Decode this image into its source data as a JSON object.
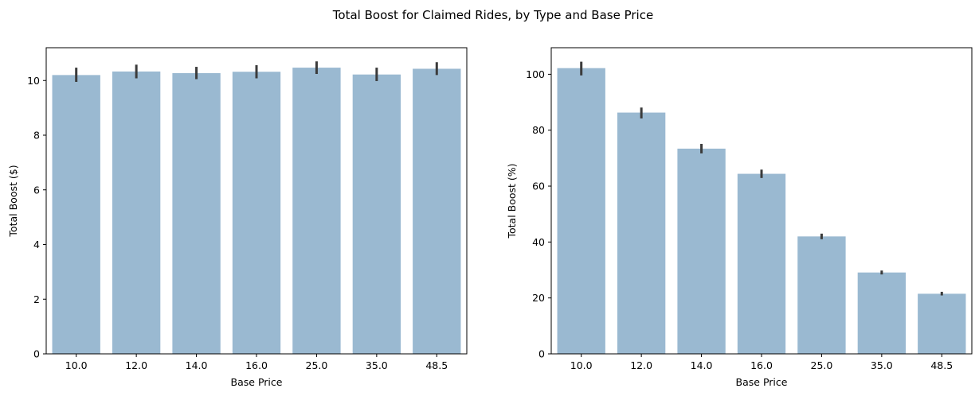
{
  "figure": {
    "title": "Total Boost for Claimed Rides, by Type and Base Price"
  },
  "colors": {
    "bar": "#9ab9d1",
    "error_bar": "#3b3b3b",
    "axis": "#000000"
  },
  "chart_data": [
    {
      "type": "bar",
      "title": "",
      "categories": [
        "10.0",
        "12.0",
        "14.0",
        "16.0",
        "25.0",
        "35.0",
        "48.5"
      ],
      "values": [
        10.2,
        10.33,
        10.27,
        10.32,
        10.47,
        10.22,
        10.43
      ],
      "error_low": [
        9.95,
        10.08,
        10.05,
        10.08,
        10.24,
        9.98,
        10.2
      ],
      "error_high": [
        10.47,
        10.58,
        10.5,
        10.56,
        10.7,
        10.47,
        10.67
      ],
      "xlabel": "Base Price",
      "ylabel": "Total Boost ($)",
      "ylim": [
        0,
        11.2
      ],
      "yticks": [
        0,
        2,
        4,
        6,
        8,
        10
      ],
      "grid": false,
      "legend": "none"
    },
    {
      "type": "bar",
      "title": "",
      "categories": [
        "10.0",
        "12.0",
        "14.0",
        "16.0",
        "25.0",
        "35.0",
        "48.5"
      ],
      "values": [
        102.2,
        86.3,
        73.4,
        64.4,
        42.0,
        29.1,
        21.5
      ],
      "error_low": [
        99.6,
        84.2,
        71.7,
        62.9,
        41.0,
        28.4,
        20.9
      ],
      "error_high": [
        104.5,
        88.1,
        75.1,
        65.9,
        43.0,
        29.8,
        22.2
      ],
      "xlabel": "Base Price",
      "ylabel": "Total Boost (%)",
      "ylim": [
        0,
        109.5
      ],
      "yticks": [
        0,
        20,
        40,
        60,
        80,
        100
      ],
      "grid": false,
      "legend": "none"
    }
  ]
}
